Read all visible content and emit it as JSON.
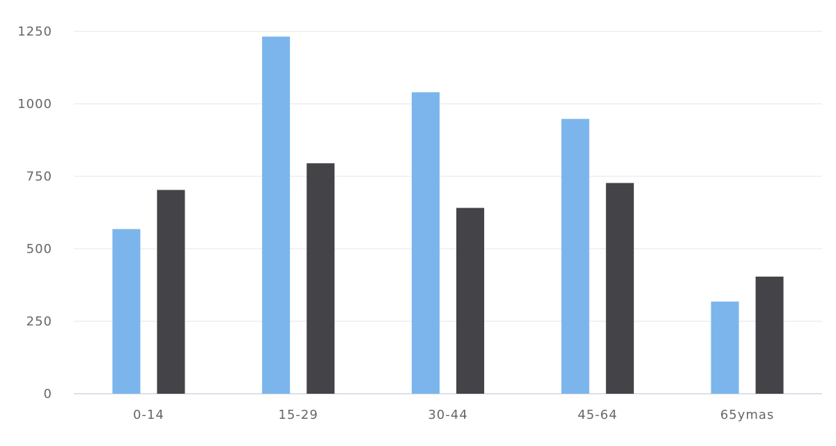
{
  "chart_data": {
    "type": "bar",
    "title": "",
    "xlabel": "",
    "ylabel": "",
    "categories": [
      "0-14",
      "15-29",
      "30-44",
      "45-64",
      "65ymas"
    ],
    "series": [
      {
        "values": [
          568,
          1232,
          1040,
          948,
          318
        ],
        "color": "#7cb5ec"
      },
      {
        "values": [
          703,
          795,
          641,
          727,
          404
        ],
        "color": "#434348"
      }
    ],
    "ylim": [
      0,
      1250
    ],
    "yticks": [
      0,
      250,
      500,
      750,
      1000,
      1250
    ],
    "grid": true,
    "legend": "none"
  }
}
